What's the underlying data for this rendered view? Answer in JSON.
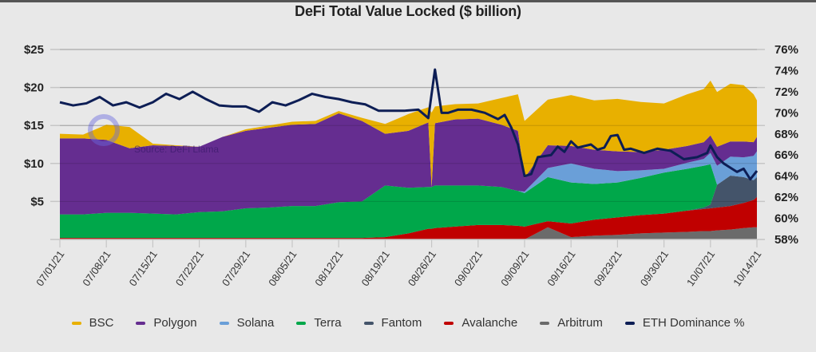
{
  "chart_data": {
    "type": "area",
    "title": "DeFi Total Value Locked ($ billion)",
    "xlabel": "",
    "ylabel": "",
    "y2label": "",
    "ylim": [
      0,
      25
    ],
    "y2lim": [
      58,
      76
    ],
    "yticks": [
      {
        "v": 5,
        "label": "$5"
      },
      {
        "v": 10,
        "label": "$10"
      },
      {
        "v": 15,
        "label": "$15"
      },
      {
        "v": 20,
        "label": "$20"
      },
      {
        "v": 25,
        "label": "$25"
      }
    ],
    "y2ticks": [
      {
        "v": 58,
        "label": "58%"
      },
      {
        "v": 60,
        "label": "60%"
      },
      {
        "v": 62,
        "label": "62%"
      },
      {
        "v": 64,
        "label": "64%"
      },
      {
        "v": 66,
        "label": "66%"
      },
      {
        "v": 68,
        "label": "68%"
      },
      {
        "v": 70,
        "label": "70%"
      },
      {
        "v": 72,
        "label": "72%"
      },
      {
        "v": 74,
        "label": "74%"
      },
      {
        "v": 76,
        "label": "76%"
      }
    ],
    "xticks": [
      {
        "day": 0,
        "label": "07/01/21"
      },
      {
        "day": 7,
        "label": "07/08/21"
      },
      {
        "day": 14,
        "label": "07/15/21"
      },
      {
        "day": 21,
        "label": "07/22/21"
      },
      {
        "day": 28,
        "label": "07/29/21"
      },
      {
        "day": 35,
        "label": "08/05/21"
      },
      {
        "day": 42,
        "label": "08/12/21"
      },
      {
        "day": 49,
        "label": "08/19/21"
      },
      {
        "day": 56,
        "label": "08/26/21"
      },
      {
        "day": 63,
        "label": "09/02/21"
      },
      {
        "day": 70,
        "label": "09/09/21"
      },
      {
        "day": 77,
        "label": "09/16/21"
      },
      {
        "day": 84,
        "label": "09/23/21"
      },
      {
        "day": 91,
        "label": "09/30/21"
      },
      {
        "day": 98,
        "label": "10/07/21"
      },
      {
        "day": 105,
        "label": "10/14/21"
      }
    ],
    "grid": true,
    "legend_position": "bottom",
    "annotation": "Source: DeFi Llama",
    "x_days": [
      0,
      3.5,
      7,
      10.5,
      14,
      17.5,
      21,
      24.5,
      28,
      31.5,
      35,
      38.5,
      42,
      45.5,
      49,
      52.5,
      55.5,
      56,
      56.5,
      59.5,
      63,
      66.5,
      69,
      70,
      73.5,
      77,
      80.5,
      84,
      87.5,
      91,
      94.5,
      97,
      98,
      99,
      101,
      103,
      104.5,
      105
    ],
    "series": [
      {
        "name": "Arbitrum",
        "color": "#6b6b6b",
        "values": [
          0,
          0,
          0,
          0,
          0,
          0,
          0,
          0,
          0,
          0,
          0,
          0,
          0,
          0,
          0,
          0,
          0,
          0,
          0,
          0,
          0,
          0,
          0,
          0,
          1.6,
          0.3,
          0.5,
          0.6,
          0.8,
          0.9,
          1.0,
          1.1,
          1.1,
          1.2,
          1.3,
          1.5,
          1.6,
          1.6
        ]
      },
      {
        "name": "Avalanche",
        "color": "#c00000",
        "values": [
          0.2,
          0.2,
          0.2,
          0.2,
          0.2,
          0.2,
          0.2,
          0.2,
          0.2,
          0.2,
          0.2,
          0.2,
          0.2,
          0.2,
          0.3,
          0.8,
          1.4,
          1.4,
          1.5,
          1.7,
          1.9,
          1.9,
          1.8,
          1.7,
          0.8,
          1.8,
          2.1,
          2.3,
          2.4,
          2.5,
          2.8,
          2.9,
          3.0,
          3.0,
          3.1,
          3.3,
          3.6,
          4.0
        ]
      },
      {
        "name": "Fantom",
        "color": "#44546a",
        "values": [
          0,
          0,
          0,
          0,
          0,
          0,
          0,
          0,
          0,
          0,
          0,
          0,
          0,
          0,
          0,
          0,
          0,
          0,
          0,
          0,
          0,
          0,
          0,
          0,
          0,
          0,
          0,
          0,
          0,
          0,
          0,
          0.2,
          0.5,
          3.0,
          4.0,
          3.4,
          2.6,
          2.6
        ]
      },
      {
        "name": "Terra",
        "color": "#00a74a",
        "values": [
          3.1,
          3.1,
          3.3,
          3.3,
          3.2,
          3.1,
          3.4,
          3.5,
          3.9,
          4.0,
          4.2,
          4.2,
          4.7,
          4.8,
          6.8,
          6.0,
          5.5,
          5.5,
          5.6,
          5.4,
          5.2,
          5.0,
          4.6,
          4.4,
          5.8,
          5.4,
          4.7,
          4.6,
          4.9,
          5.4,
          5.5,
          5.5,
          5.3,
          0,
          0,
          0,
          0,
          0
        ]
      },
      {
        "name": "Solana",
        "color": "#6a9fd8",
        "values": [
          0,
          0,
          0,
          0,
          0,
          0,
          0,
          0,
          0,
          0,
          0,
          0,
          0,
          0,
          0,
          0,
          0,
          0,
          0,
          0,
          0,
          0,
          0,
          0.2,
          1.2,
          2.5,
          2.0,
          1.5,
          1.0,
          0.5,
          0.8,
          0.9,
          1.5,
          2.5,
          2.5,
          2.6,
          3.2,
          3.4
        ]
      },
      {
        "name": "Polygon",
        "color": "#652d90",
        "values": [
          10.0,
          10.0,
          9.6,
          8.5,
          9.0,
          9.0,
          8.6,
          9.8,
          10.2,
          10.5,
          10.7,
          10.8,
          11.7,
          10.6,
          6.8,
          7.5,
          8.5,
          0,
          8.2,
          8.7,
          8.8,
          8.2,
          7.9,
          1.8,
          3.0,
          2.3,
          2.5,
          2.6,
          2.4,
          2.5,
          2.2,
          2.2,
          2.3,
          2.5,
          2.0,
          2.1,
          1.8,
          1.9
        ]
      },
      {
        "name": "BSC",
        "color": "#e8b000",
        "values": [
          0.6,
          0.5,
          2.0,
          2.8,
          0.2,
          0.1,
          0,
          0,
          0.2,
          0.3,
          0.4,
          0.4,
          0.3,
          0.4,
          1.3,
          2.2,
          2.0,
          9.8,
          2.2,
          2.0,
          2.0,
          3.5,
          4.8,
          7.5,
          6.0,
          6.7,
          6.5,
          6.9,
          6.6,
          6.1,
          6.8,
          7.0,
          7.2,
          7.2,
          7.6,
          7.4,
          6.3,
          4.8
        ]
      }
    ],
    "line_series": {
      "name": "ETH Dominance %",
      "color": "#0d1e55",
      "axis": "right",
      "x_days": [
        0,
        2,
        4,
        6,
        8,
        10,
        12,
        14,
        16,
        18,
        20,
        22,
        24,
        26,
        28,
        30,
        32,
        34,
        36,
        38,
        40,
        42,
        44,
        46,
        48,
        50,
        52,
        54,
        55.5,
        56.5,
        57.5,
        58.5,
        60,
        62,
        64,
        66,
        67,
        68,
        69,
        70,
        71,
        72,
        74,
        75,
        76,
        77,
        78,
        80,
        81,
        82,
        83,
        84,
        85,
        86,
        88,
        90,
        92,
        94,
        96,
        97.5,
        98,
        99,
        100,
        101,
        102,
        103,
        104,
        105
      ],
      "values": [
        71.0,
        70.7,
        70.9,
        71.5,
        70.7,
        71.0,
        70.5,
        71.0,
        71.8,
        71.3,
        72.0,
        71.3,
        70.7,
        70.6,
        70.6,
        70.1,
        71.0,
        70.7,
        71.2,
        71.8,
        71.5,
        71.3,
        71.0,
        70.8,
        70.2,
        70.2,
        70.2,
        70.3,
        69.5,
        74.1,
        70.0,
        70.0,
        70.3,
        70.3,
        70.0,
        69.4,
        69.8,
        68.6,
        67.0,
        64.0,
        64.2,
        65.8,
        66.0,
        66.8,
        66.3,
        67.3,
        66.7,
        67.0,
        66.5,
        66.7,
        67.8,
        67.9,
        66.5,
        66.6,
        66.2,
        66.6,
        66.4,
        65.6,
        65.8,
        66.2,
        66.9,
        65.8,
        65.2,
        64.8,
        64.4,
        64.7,
        63.7,
        64.5
      ]
    }
  },
  "legend": [
    {
      "label": "BSC",
      "color": "#e8b000"
    },
    {
      "label": "Polygon",
      "color": "#652d90"
    },
    {
      "label": "Solana",
      "color": "#6a9fd8"
    },
    {
      "label": "Terra",
      "color": "#00a74a"
    },
    {
      "label": "Fantom",
      "color": "#44546a"
    },
    {
      "label": "Avalanche",
      "color": "#c00000"
    },
    {
      "label": "Arbitrum",
      "color": "#6b6b6b"
    },
    {
      "label": "ETH Dominance %",
      "color": "#0d1e55"
    }
  ]
}
